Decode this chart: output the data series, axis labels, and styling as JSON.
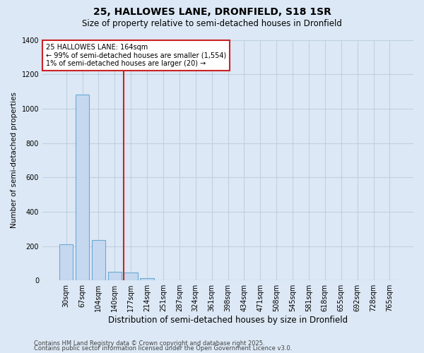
{
  "title1": "25, HALLOWES LANE, DRONFIELD, S18 1SR",
  "title2": "Size of property relative to semi-detached houses in Dronfield",
  "xlabel": "Distribution of semi-detached houses by size in Dronfield",
  "ylabel": "Number of semi-detached properties",
  "categories": [
    "30sqm",
    "67sqm",
    "104sqm",
    "140sqm",
    "177sqm",
    "214sqm",
    "251sqm",
    "287sqm",
    "324sqm",
    "361sqm",
    "398sqm",
    "434sqm",
    "471sqm",
    "508sqm",
    "545sqm",
    "581sqm",
    "618sqm",
    "655sqm",
    "692sqm",
    "728sqm",
    "765sqm"
  ],
  "values": [
    210,
    1080,
    235,
    50,
    45,
    15,
    0,
    0,
    0,
    0,
    0,
    0,
    0,
    0,
    0,
    0,
    0,
    0,
    0,
    0,
    0
  ],
  "bar_color": "#c5d8f0",
  "bar_edge_color": "#6aaad4",
  "property_line_index": 4,
  "property_line_color": "#cc2222",
  "annotation_text": "25 HALLOWES LANE: 164sqm\n← 99% of semi-detached houses are smaller (1,554)\n1% of semi-detached houses are larger (20) →",
  "annotation_box_color": "#ffffff",
  "annotation_border_color": "#cc2222",
  "ylim": [
    0,
    1400
  ],
  "yticks": [
    0,
    200,
    400,
    600,
    800,
    1000,
    1200,
    1400
  ],
  "background_color": "#dce8f5",
  "grid_color": "#c0cfe0",
  "footer1": "Contains HM Land Registry data © Crown copyright and database right 2025.",
  "footer2": "Contains public sector information licensed under the Open Government Licence v3.0.",
  "title1_fontsize": 10,
  "title2_fontsize": 8.5,
  "xlabel_fontsize": 8.5,
  "ylabel_fontsize": 7.5,
  "tick_fontsize": 7,
  "annotation_fontsize": 7,
  "footer_fontsize": 6
}
